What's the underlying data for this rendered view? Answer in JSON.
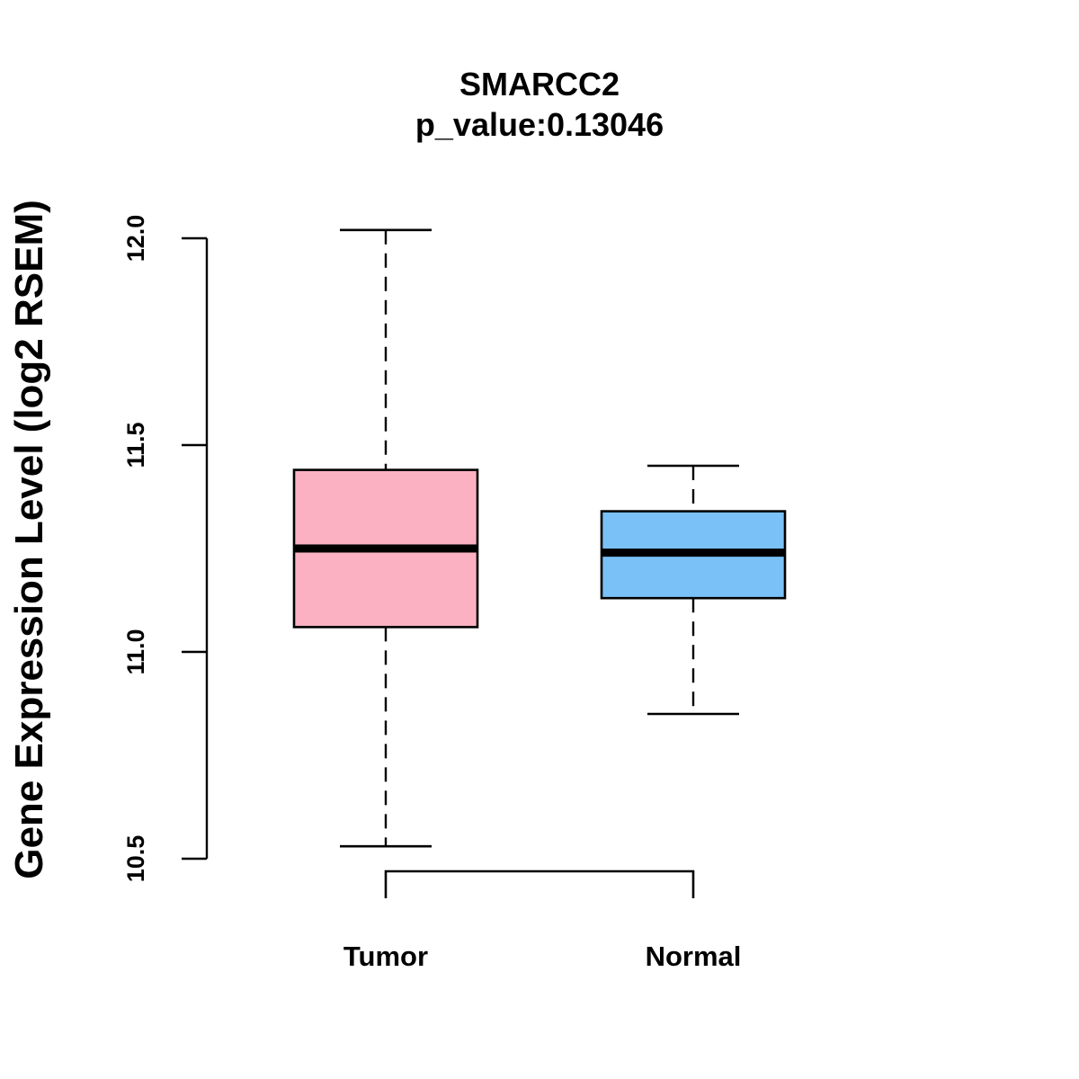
{
  "chart_data": {
    "type": "boxplot",
    "title": "SMARCC2",
    "subtitle": "p_value:0.13046",
    "ylabel": "Gene Expression Level (log2 RSEM)",
    "xlabel": "",
    "ylim": [
      10.5,
      12.0
    ],
    "yticks": [
      "10.5",
      "11.0",
      "11.5",
      "12.0"
    ],
    "categories": [
      "Tumor",
      "Normal"
    ],
    "boxes": [
      {
        "category": "Tumor",
        "whisker_low": 10.53,
        "q1": 11.06,
        "median": 11.25,
        "q3": 11.44,
        "whisker_high": 12.02,
        "color": "#FBB1C2"
      },
      {
        "category": "Normal",
        "whisker_low": 10.85,
        "q1": 11.13,
        "median": 11.24,
        "q3": 11.34,
        "whisker_high": 11.45,
        "color": "#79C1F7"
      }
    ],
    "grid": false,
    "legend": "none"
  }
}
